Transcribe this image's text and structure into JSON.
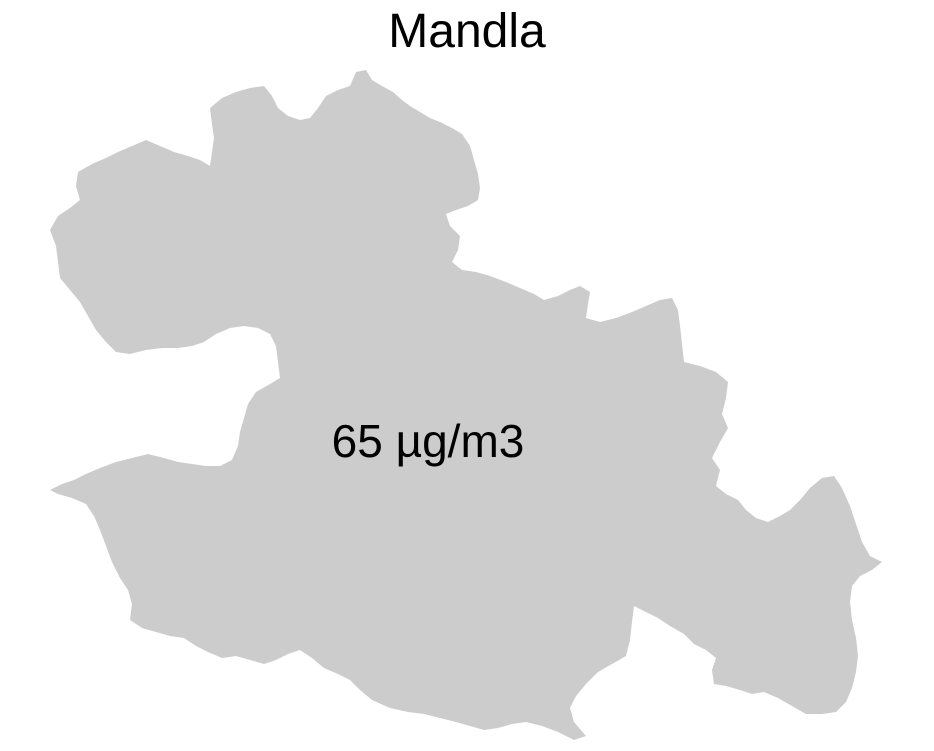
{
  "map": {
    "title": "Mandla",
    "value_label": "65 µg/m3",
    "region_fill": "#cccccc",
    "background": "#ffffff",
    "text_color": "#000000"
  }
}
